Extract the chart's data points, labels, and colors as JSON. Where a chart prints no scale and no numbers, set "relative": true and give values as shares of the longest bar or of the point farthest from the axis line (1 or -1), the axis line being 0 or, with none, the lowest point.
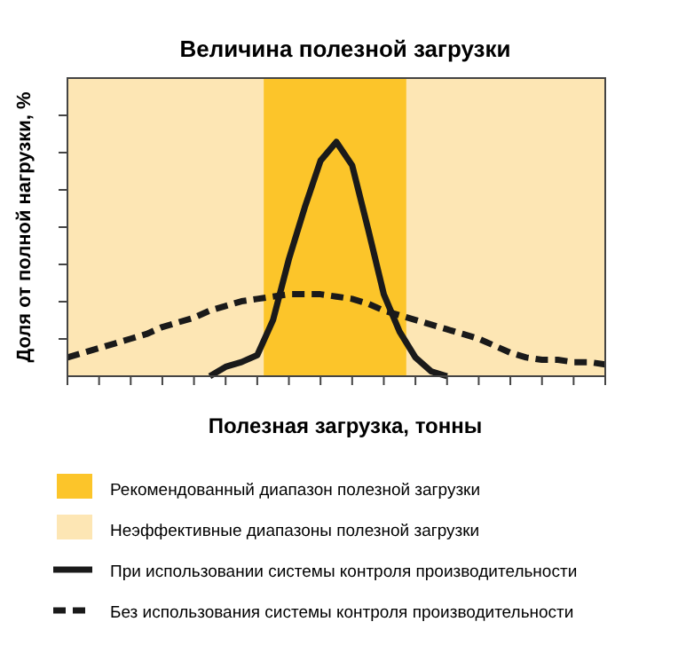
{
  "chart_data": {
    "type": "line",
    "title": "Величина полезной загрузки",
    "xlabel": "Полезная загрузка, тонны",
    "ylabel": "Доля от полной нагрузки, %",
    "relative": true,
    "categories": [
      null,
      null,
      null,
      null,
      null,
      null,
      null,
      null,
      null,
      null,
      null,
      null,
      null,
      null,
      null,
      null,
      null,
      null,
      null,
      null,
      null,
      null,
      null,
      null,
      null,
      null,
      null,
      null,
      null,
      null,
      null,
      null,
      null,
      null,
      null
    ],
    "annotations": [
      "Рекомендованный диапазон полезной загрузки",
      "Неэффективные диапазоны полезной загрузки"
    ],
    "series": [
      {
        "name": "При использовании системы контроля производительности",
        "color": "#1a1a1a",
        "line_style": "solid",
        "values": [
          null,
          null,
          null,
          null,
          null,
          null,
          null,
          null,
          null,
          0,
          0.04,
          0.06,
          0.09,
          0.24,
          0.5,
          0.72,
          0.92,
          1,
          0.9,
          0.63,
          0.35,
          0.19,
          0.08,
          0.02,
          0,
          null,
          null,
          null,
          null,
          null,
          null,
          null,
          null,
          null,
          null
        ]
      },
      {
        "name": "Без использования системы контроля производительности",
        "color": "#1a1a1a",
        "line_style": "dashed",
        "values": [
          0.08,
          0.1,
          0.12,
          0.14,
          0.16,
          0.18,
          0.21,
          0.23,
          0.25,
          0.28,
          0.3,
          0.32,
          0.33,
          0.34,
          0.35,
          0.35,
          0.35,
          0.34,
          0.33,
          0.31,
          0.28,
          0.26,
          0.24,
          0.22,
          0.2,
          0.18,
          0.16,
          0.13,
          0.1,
          0.08,
          0.07,
          0.07,
          0.06,
          0.06,
          0.05
        ]
      }
    ],
    "legend": "bottom"
  }
}
